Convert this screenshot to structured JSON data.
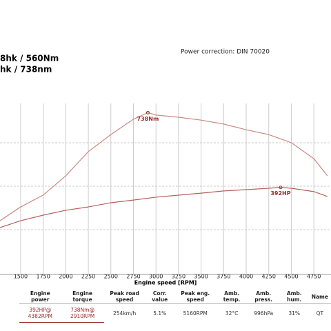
{
  "header": {
    "lines": [
      "8hk / 560Nm",
      "hk / 738nm"
    ],
    "note": "Power correction: DIN 70020"
  },
  "chart_data": {
    "type": "line",
    "xlabel": "Engine speed [RPM]",
    "xlim": [
      1271,
      4940
    ],
    "xticks": [
      1500,
      1750,
      2000,
      2250,
      2500,
      2750,
      3000,
      3250,
      3500,
      3750,
      4000,
      4250,
      4500,
      4750
    ],
    "ylim": [
      0,
      780
    ],
    "y2lim": [
      0,
      770
    ],
    "grid": true,
    "series": [
      {
        "name": "Engine torque",
        "color": "#c98a80",
        "x": [
          1271,
          1500,
          1750,
          2000,
          2250,
          2500,
          2750,
          2910,
          3000,
          3250,
          3500,
          3750,
          4000,
          4250,
          4500,
          4750,
          4900
        ],
        "values": [
          245,
          308,
          362,
          450,
          560,
          638,
          708,
          738,
          727,
          717,
          704,
          686,
          660,
          638,
          601,
          528,
          450
        ]
      },
      {
        "name": "Engine power",
        "color": "#b5605a",
        "axis": "y2",
        "x": [
          1271,
          1500,
          1750,
          2000,
          2250,
          2500,
          2750,
          3000,
          3250,
          3500,
          3750,
          4000,
          4250,
          4382,
          4500,
          4750,
          4900
        ],
        "values": [
          211,
          242,
          267,
          289,
          304,
          323,
          335,
          348,
          357,
          366,
          376,
          382,
          388,
          392,
          388,
          373,
          351
        ]
      }
    ],
    "annotations": [
      {
        "text": "738Nm",
        "series": 0,
        "index": 7
      },
      {
        "text": "392HP",
        "series": 1,
        "index": 13
      }
    ]
  },
  "table": {
    "headers": [
      "Engine power",
      "Engine torque",
      "Peak road speed",
      "Corr. value",
      "Peak eng. speed",
      "Amb. temp.",
      "Amb. press.",
      "Amb. hum.",
      "Name"
    ],
    "rows": [
      [
        "392HP@ 4382RPM",
        "738Nm@ 2910RPM",
        "254km/h",
        "5.1%",
        "5160RPM",
        "32°C",
        "996hPa",
        "31%",
        "QT"
      ]
    ]
  }
}
